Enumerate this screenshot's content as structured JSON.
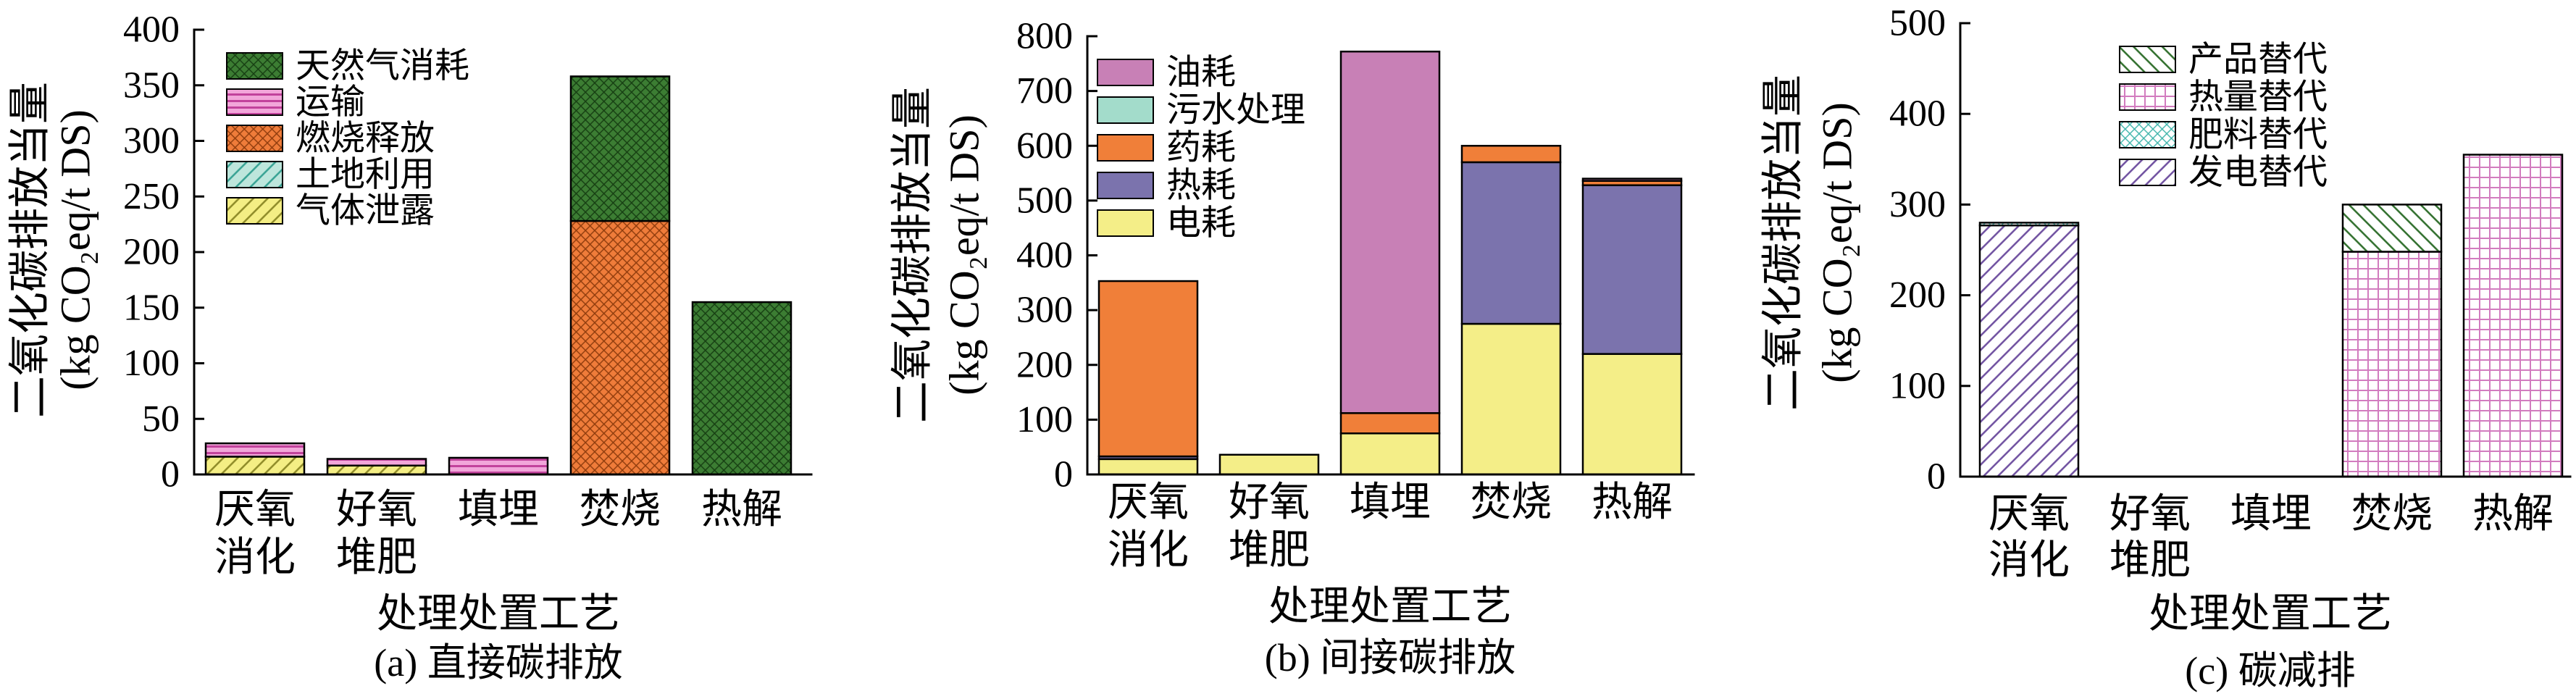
{
  "chart_data": [
    {
      "type": "bar",
      "stacked": true,
      "caption": "(a) 直接碳排放",
      "xlabel": "处理处置工艺",
      "ylabel": [
        "二氧化碳排放当量",
        "(kg CO₂eq/t DS)"
      ],
      "ylim": [
        0,
        400
      ],
      "yticks": [
        0,
        50,
        100,
        150,
        200,
        250,
        300,
        350,
        400
      ],
      "categories": [
        [
          "厌氧",
          "消化"
        ],
        [
          "好氧",
          "堆肥"
        ],
        [
          "填埋"
        ],
        [
          "焚烧"
        ],
        [
          "热解"
        ]
      ],
      "legend_position": "upper-left",
      "grid": false,
      "series": [
        {
          "name": "天然气消耗",
          "values": [
            0,
            0,
            0,
            130,
            155
          ],
          "color": "#3c7d33",
          "hatch_color": "#163d12",
          "pattern": "crosshatch"
        },
        {
          "name": "运输",
          "values": [
            12,
            6,
            15,
            0,
            0
          ],
          "color": "#f2a6da",
          "hatch_color": "#c2429c",
          "pattern": "horizontal"
        },
        {
          "name": "燃烧释放",
          "values": [
            0,
            0,
            0,
            228,
            0
          ],
          "color": "#ef7c3a",
          "hatch_color": "#8d3b0c",
          "pattern": "crosshatch"
        },
        {
          "name": "土地利用",
          "values": [
            0,
            0,
            0,
            0,
            0
          ],
          "color": "#bde6dc",
          "hatch_color": "#36a293",
          "pattern": "diagonal-up"
        },
        {
          "name": "气体泄露",
          "values": [
            16,
            8,
            0,
            0,
            0
          ],
          "color": "#f4ee84",
          "hatch_color": "#8e8a27",
          "pattern": "diagonal-up"
        }
      ]
    },
    {
      "type": "bar",
      "stacked": true,
      "caption": "(b) 间接碳排放",
      "xlabel": "处理处置工艺",
      "ylabel": [
        "二氧化碳排放当量",
        "(kg CO₂eq/t DS)"
      ],
      "ylim": [
        0,
        800
      ],
      "yticks": [
        0,
        100,
        200,
        300,
        400,
        500,
        600,
        700,
        800
      ],
      "categories": [
        [
          "厌氧",
          "消化"
        ],
        [
          "好氧",
          "堆肥"
        ],
        [
          "填埋"
        ],
        [
          "焚烧"
        ],
        [
          "热解"
        ]
      ],
      "legend_position": "upper-left",
      "grid": false,
      "series": [
        {
          "name": "油耗",
          "values": [
            0,
            0,
            660,
            0,
            4
          ],
          "color": "#c880b6",
          "pattern": "solid"
        },
        {
          "name": "污水处理",
          "values": [
            0,
            0,
            0,
            0,
            0
          ],
          "color": "#a3dccb",
          "pattern": "solid"
        },
        {
          "name": "药耗",
          "values": [
            320,
            0,
            37,
            30,
            8
          ],
          "color": "#f07f39",
          "pattern": "solid"
        },
        {
          "name": "热耗",
          "values": [
            5,
            0,
            0,
            295,
            308
          ],
          "color": "#7b73ad",
          "pattern": "solid"
        },
        {
          "name": "电耗",
          "values": [
            28,
            36,
            75,
            275,
            220
          ],
          "color": "#f4ee88",
          "pattern": "solid"
        }
      ]
    },
    {
      "type": "bar",
      "stacked": true,
      "caption": "(c) 碳减排",
      "xlabel": "处理处置工艺",
      "ylabel": [
        "二氧化碳排放当量",
        "(kg CO₂eq/t DS)"
      ],
      "ylim": [
        0,
        500
      ],
      "yticks": [
        0,
        100,
        200,
        300,
        400,
        500
      ],
      "categories": [
        [
          "厌氧",
          "消化"
        ],
        [
          "好氧",
          "堆肥"
        ],
        [
          "填埋"
        ],
        [
          "焚烧"
        ],
        [
          "热解"
        ]
      ],
      "legend_position": "upper-center",
      "grid": false,
      "series": [
        {
          "name": "产品替代",
          "values": [
            0,
            0,
            0,
            52,
            0
          ],
          "color": "#ffffff",
          "hatch_color": "#2f6e2b",
          "pattern": "diagonal-down"
        },
        {
          "name": "热量替代",
          "values": [
            0,
            0,
            0,
            248,
            355
          ],
          "color": "#ffffff",
          "hatch_color": "#d27cbf",
          "pattern": "grid"
        },
        {
          "name": "肥料替代",
          "values": [
            3,
            0,
            0,
            0,
            0
          ],
          "color": "#ffffff",
          "hatch_color": "#3cb4aa",
          "pattern": "crosshatch"
        },
        {
          "name": "发电替代",
          "values": [
            277,
            0,
            0,
            0,
            0
          ],
          "color": "#ffffff",
          "hatch_color": "#6e4f9f",
          "pattern": "diagonal-up"
        }
      ]
    }
  ]
}
